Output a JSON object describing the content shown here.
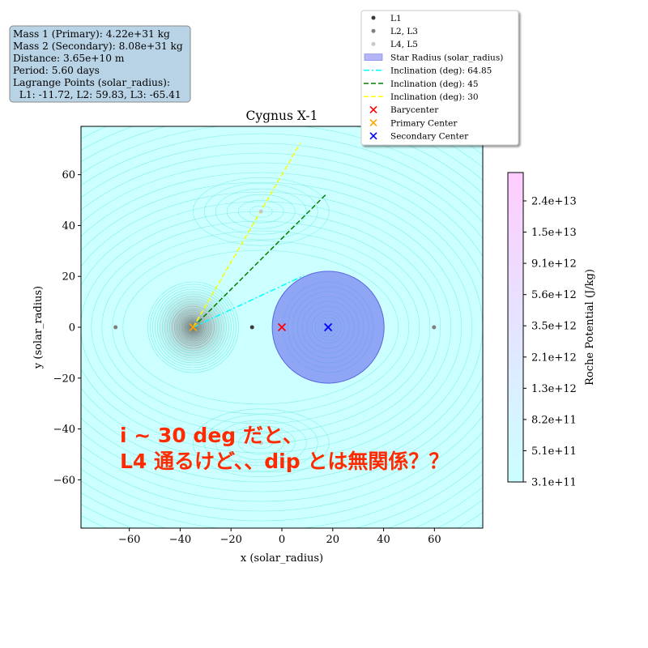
{
  "chart_data": {
    "type": "scatter",
    "title": "Cygnus X-1",
    "xlabel": "x (solar_radius)",
    "ylabel": "y (solar_radius)",
    "xlim": [
      -79,
      79
    ],
    "ylim": [
      -79,
      79
    ],
    "xticks": [
      -60,
      -40,
      -20,
      0,
      20,
      40,
      60
    ],
    "yticks": [
      -60,
      -40,
      -20,
      0,
      20,
      40,
      60
    ],
    "xtick_labels": [
      "−60",
      "−40",
      "−20",
      "0",
      "20",
      "40",
      "60"
    ],
    "ytick_labels": [
      "−60",
      "−40",
      "−20",
      "0",
      "20",
      "40",
      "60"
    ],
    "grid": false,
    "background": "#ccffff",
    "contour_color": "#40e0d0",
    "primary_center": [
      -34.9,
      0
    ],
    "secondary_center": [
      18.2,
      0
    ],
    "star_radius": 22,
    "star_radius_color": "#6f77ef",
    "points": {
      "L1": [
        [
          -11.72,
          0
        ]
      ],
      "L2_L3": [
        [
          59.83,
          0
        ],
        [
          -65.41,
          0
        ]
      ],
      "L4_L5": [
        [
          -8.2,
          45.5
        ],
        [
          -8.2,
          -45.5
        ]
      ]
    },
    "inclination_lines": [
      {
        "label": "Inclination (deg): 64.85",
        "color": "#00ffff",
        "dash": "7,3,2,3",
        "end": [
          8.6,
          20.3
        ]
      },
      {
        "label": "Inclination (deg): 45",
        "color": "#008000",
        "dash": "6,3",
        "end": [
          17.5,
          52.4
        ]
      },
      {
        "label": "Inclination (deg): 30",
        "color": "#ffff00",
        "dash": "6,3",
        "end": [
          7.3,
          72.5
        ]
      }
    ],
    "markers": {
      "barycenter": [
        0,
        0
      ],
      "primary_center": [
        -34.9,
        0
      ],
      "secondary_center": [
        18.2,
        0
      ]
    },
    "legend": {
      "position": "top-right (outside axes)",
      "entries": [
        {
          "label": "L1",
          "kind": "dot",
          "color": "#3a3a3a"
        },
        {
          "label": "L2, L3",
          "kind": "dot",
          "color": "#7f7f7f"
        },
        {
          "label": "L4, L5",
          "kind": "dot",
          "color": "#c8c8c8"
        },
        {
          "label": "Star Radius (solar_radius)",
          "kind": "patch",
          "color": "#b3b5f5"
        },
        {
          "label": "Inclination (deg): 64.85",
          "kind": "line",
          "color": "#00ffff",
          "dash": "7,3,2,3"
        },
        {
          "label": "Inclination (deg): 45",
          "kind": "line",
          "color": "#008000",
          "dash": "6,3"
        },
        {
          "label": "Inclination (deg): 30",
          "kind": "line",
          "color": "#ffff00",
          "dash": "6,3"
        },
        {
          "label": "Barycenter",
          "kind": "x",
          "color": "#ff0000"
        },
        {
          "label": "Primary Center",
          "kind": "x",
          "color": "#ffa500"
        },
        {
          "label": "Secondary Center",
          "kind": "x",
          "color": "#0000ff"
        }
      ]
    },
    "colorbar": {
      "label": "Roche Potential (J/kg)",
      "ticks": [
        "2.4e+13",
        "1.5e+13",
        "9.1e+12",
        "5.6e+12",
        "3.5e+12",
        "2.1e+12",
        "1.3e+12",
        "8.2e+11",
        "5.1e+11",
        "3.1e+11"
      ],
      "color_top": "#ffccff",
      "color_bottom": "#ccffff"
    },
    "info_box": {
      "lines": [
        "Mass 1 (Primary): 4.22e+31 kg",
        "Mass 2 (Secondary): 8.08e+31 kg",
        "Distance: 3.65e+10 m",
        "Period: 5.60 days",
        "Lagrange Points (solar_radius):",
        "  L1: -11.72, L2: 59.83, L3: -65.41"
      ],
      "background": "#b9d3e6"
    },
    "annotation": {
      "lines": [
        "i ~ 30 deg だと、",
        "L4 通るけど、、dip とは無関係？？"
      ],
      "color": "#ff2a00"
    }
  }
}
